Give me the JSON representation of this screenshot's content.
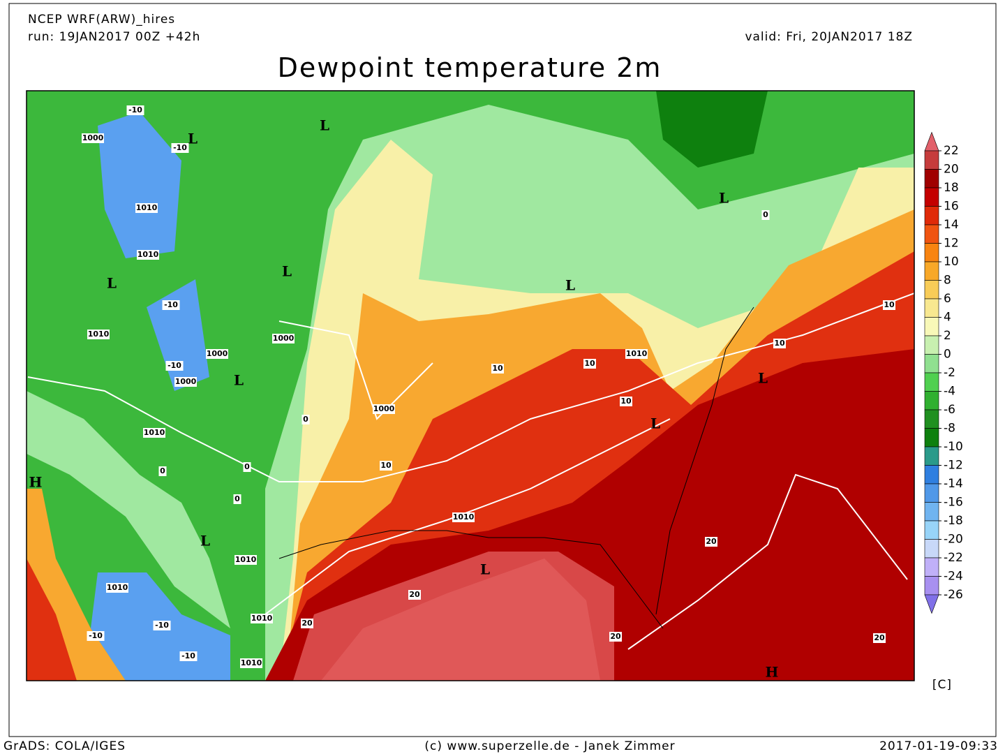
{
  "header": {
    "model": "NCEP WRF(ARW)_hires",
    "run": "run: 19JAN2017 00Z +42h",
    "valid": "valid: Fri, 20JAN2017 18Z",
    "title": "Dewpoint temperature 2m"
  },
  "legend": {
    "levels": [
      22,
      20,
      18,
      16,
      14,
      12,
      10,
      8,
      6,
      4,
      2,
      0,
      -2,
      -4,
      -6,
      -8,
      -10,
      -12,
      -14,
      -16,
      -18,
      -20,
      -22,
      -24,
      -26
    ],
    "colors": [
      "#e2606a",
      "#c63c3c",
      "#a00000",
      "#c40000",
      "#e02a08",
      "#f05410",
      "#f88410",
      "#f8a828",
      "#f8cc58",
      "#f8e890",
      "#f8f8b8",
      "#c8f0b0",
      "#90e090",
      "#50d050",
      "#30b030",
      "#209020",
      "#0e800e",
      "#2a9a8a",
      "#2f7fe0",
      "#5098e8",
      "#70b4f0",
      "#98d4f8",
      "#c8d8f8",
      "#c0b0f8",
      "#a890f0",
      "#8070e8"
    ],
    "unit": "[C]"
  },
  "map_labels": [
    "L",
    "L",
    "L",
    "L",
    "L",
    "L",
    "L",
    "L",
    "L",
    "L",
    "L",
    "H",
    "H",
    "1000",
    "1000",
    "1000",
    "1000",
    "1000",
    "1010",
    "1010",
    "1010",
    "1010",
    "1010",
    "1010",
    "1010",
    "1010",
    "1010",
    "1010",
    "10",
    "10",
    "10",
    "10",
    "10",
    "10",
    "20",
    "20",
    "20",
    "20",
    "20",
    "-10",
    "-10",
    "-10",
    "-10",
    "-10",
    "-10",
    "-10",
    "0",
    "0",
    "0",
    "0",
    "0"
  ],
  "footer": {
    "left": "GrADS: COLA/IGES",
    "center": "(c) www.superzelle.de - Janek Zimmer",
    "right": "2017-01-19-09:33"
  }
}
